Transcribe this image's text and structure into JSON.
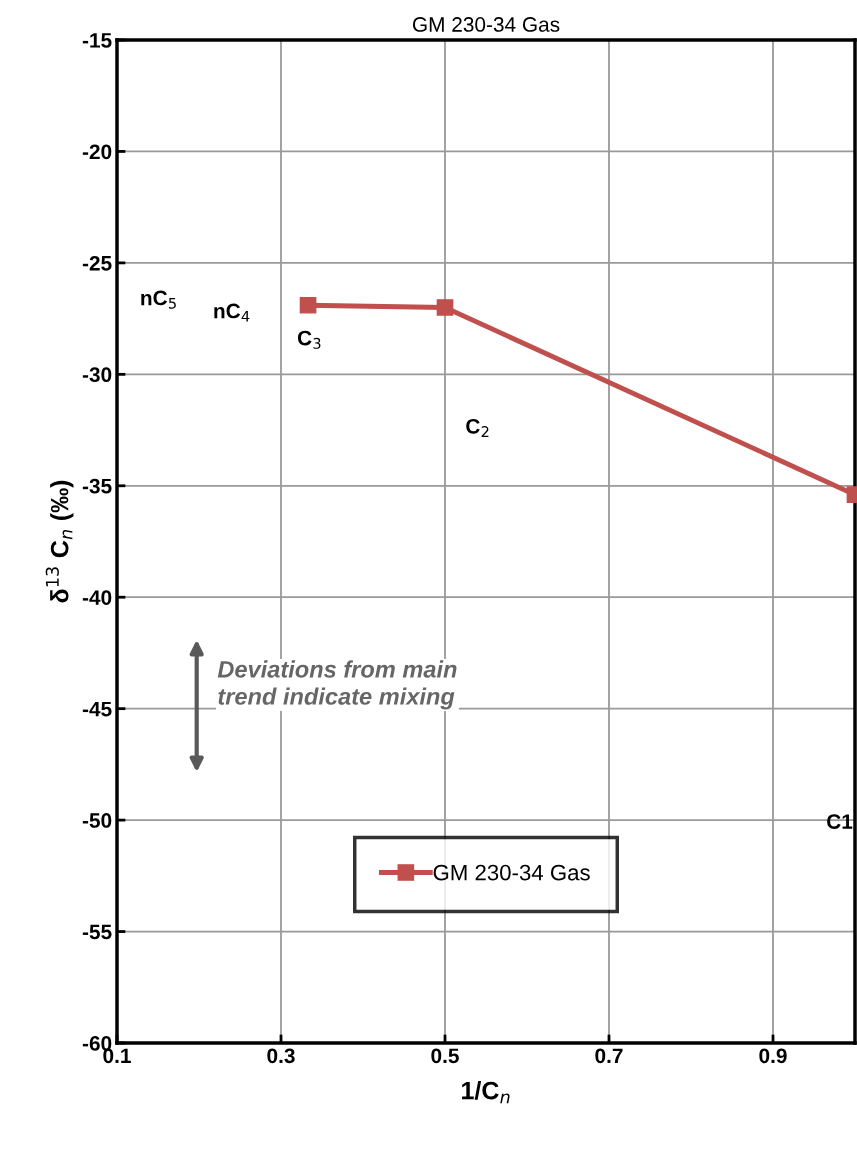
{
  "chart_data": {
    "type": "line",
    "title": "GM 230-34 Gas",
    "xlabel": "1/C$_{n}$",
    "ylabel": "δ$^{13}$ C$_{n}$ (‰)",
    "x": [
      0.333,
      0.5,
      1.0
    ],
    "series": [
      {
        "name": "GM 230-34 Gas",
        "color": "#c0504d",
        "values": [
          -26.9,
          -27.0,
          -35.4
        ]
      }
    ],
    "xlim": [
      0.1,
      1.0
    ],
    "xticks": [
      0.1,
      0.3,
      0.5,
      0.7,
      0.9
    ],
    "ylim": [
      -60,
      -15
    ],
    "yticks": [
      -60,
      -55,
      -50,
      -45,
      -40,
      -35,
      -30,
      -25,
      -20,
      -15
    ],
    "grid": true,
    "legend": "bottom",
    "marker": "square",
    "line_style": "solid",
    "annotations": [
      "nC$_{5}$",
      "nC$_{4}$",
      "C$_{3}$",
      "C$_{2}$",
      "C1",
      "Deviations from main\ntrend indicate mixing"
    ]
  }
}
